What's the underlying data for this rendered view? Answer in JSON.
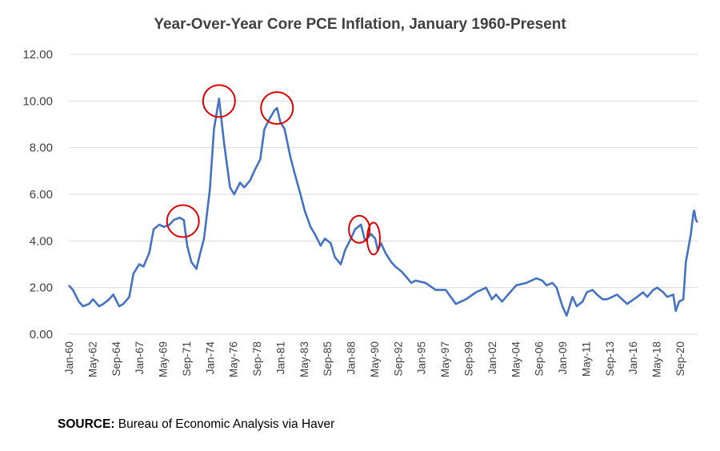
{
  "chart_data": {
    "type": "line",
    "title": "Year-Over-Year Core PCE Inflation, January 1960-Present",
    "xlabel": "",
    "ylabel": "",
    "ylim": [
      0,
      12
    ],
    "yticks": [
      "0.00",
      "2.00",
      "4.00",
      "6.00",
      "8.00",
      "10.00",
      "12.00"
    ],
    "grid": true,
    "legend": "none",
    "x_tick_labels": [
      "Jan-60",
      "May-62",
      "Sep-64",
      "Jan-67",
      "May-69",
      "Sep-71",
      "Jan-74",
      "May-76",
      "Sep-78",
      "Jan-81",
      "May-83",
      "Sep-85",
      "Jan-88",
      "May-90",
      "Sep-92",
      "Jan-95",
      "May-97",
      "Sep-99",
      "Jan-02",
      "May-04",
      "Sep-06",
      "Jan-09",
      "May-11",
      "Sep-13",
      "Jan-16",
      "May-18",
      "Sep-20"
    ],
    "series": [
      {
        "color": "#4472c4",
        "points": [
          [
            "1960-01",
            2.1
          ],
          [
            "1960-06",
            1.9
          ],
          [
            "1961-01",
            1.4
          ],
          [
            "1961-06",
            1.2
          ],
          [
            "1962-01",
            1.3
          ],
          [
            "1962-06",
            1.5
          ],
          [
            "1963-01",
            1.2
          ],
          [
            "1963-06",
            1.3
          ],
          [
            "1964-01",
            1.5
          ],
          [
            "1964-06",
            1.7
          ],
          [
            "1965-01",
            1.2
          ],
          [
            "1965-06",
            1.3
          ],
          [
            "1966-01",
            1.6
          ],
          [
            "1966-06",
            2.6
          ],
          [
            "1967-01",
            3.0
          ],
          [
            "1967-06",
            2.9
          ],
          [
            "1968-01",
            3.5
          ],
          [
            "1968-06",
            4.5
          ],
          [
            "1969-01",
            4.7
          ],
          [
            "1969-06",
            4.6
          ],
          [
            "1970-01",
            4.7
          ],
          [
            "1970-06",
            4.9
          ],
          [
            "1971-01",
            5.0
          ],
          [
            "1971-06",
            4.9
          ],
          [
            "1971-10",
            3.8
          ],
          [
            "1972-03",
            3.1
          ],
          [
            "1972-09",
            2.8
          ],
          [
            "1973-01",
            3.4
          ],
          [
            "1973-06",
            4.1
          ],
          [
            "1974-01",
            6.2
          ],
          [
            "1974-06",
            8.8
          ],
          [
            "1974-12",
            10.1
          ],
          [
            "1975-06",
            8.2
          ],
          [
            "1976-01",
            6.3
          ],
          [
            "1976-06",
            6.0
          ],
          [
            "1977-01",
            6.5
          ],
          [
            "1977-06",
            6.3
          ],
          [
            "1978-01",
            6.6
          ],
          [
            "1978-06",
            7.0
          ],
          [
            "1979-01",
            7.5
          ],
          [
            "1979-06",
            8.8
          ],
          [
            "1980-01",
            9.3
          ],
          [
            "1980-06",
            9.6
          ],
          [
            "1980-09",
            9.7
          ],
          [
            "1981-01",
            9.1
          ],
          [
            "1981-06",
            8.8
          ],
          [
            "1982-01",
            7.6
          ],
          [
            "1982-06",
            6.9
          ],
          [
            "1983-01",
            6.0
          ],
          [
            "1983-06",
            5.3
          ],
          [
            "1984-01",
            4.6
          ],
          [
            "1984-06",
            4.3
          ],
          [
            "1985-01",
            3.8
          ],
          [
            "1985-06",
            4.1
          ],
          [
            "1986-01",
            3.9
          ],
          [
            "1986-06",
            3.3
          ],
          [
            "1987-01",
            3.0
          ],
          [
            "1987-06",
            3.6
          ],
          [
            "1988-01",
            4.1
          ],
          [
            "1988-06",
            4.5
          ],
          [
            "1989-01",
            4.7
          ],
          [
            "1989-06",
            4.0
          ],
          [
            "1990-01",
            4.3
          ],
          [
            "1990-06",
            4.1
          ],
          [
            "1990-09",
            3.6
          ],
          [
            "1991-01",
            3.9
          ],
          [
            "1991-06",
            3.5
          ],
          [
            "1992-01",
            3.1
          ],
          [
            "1992-06",
            2.9
          ],
          [
            "1993-01",
            2.7
          ],
          [
            "1993-06",
            2.5
          ],
          [
            "1994-01",
            2.2
          ],
          [
            "1994-06",
            2.3
          ],
          [
            "1995-06",
            2.2
          ],
          [
            "1996-06",
            1.9
          ],
          [
            "1997-06",
            1.9
          ],
          [
            "1998-06",
            1.3
          ],
          [
            "1999-06",
            1.5
          ],
          [
            "2000-06",
            1.8
          ],
          [
            "2001-06",
            2.0
          ],
          [
            "2002-01",
            1.5
          ],
          [
            "2002-06",
            1.7
          ],
          [
            "2003-01",
            1.4
          ],
          [
            "2003-06",
            1.6
          ],
          [
            "2004-06",
            2.1
          ],
          [
            "2005-06",
            2.2
          ],
          [
            "2006-06",
            2.4
          ],
          [
            "2007-01",
            2.3
          ],
          [
            "2007-06",
            2.1
          ],
          [
            "2008-01",
            2.2
          ],
          [
            "2008-06",
            2.0
          ],
          [
            "2009-01",
            1.2
          ],
          [
            "2009-06",
            0.8
          ],
          [
            "2010-01",
            1.6
          ],
          [
            "2010-06",
            1.2
          ],
          [
            "2011-01",
            1.4
          ],
          [
            "2011-06",
            1.8
          ],
          [
            "2012-01",
            1.9
          ],
          [
            "2012-06",
            1.7
          ],
          [
            "2013-01",
            1.5
          ],
          [
            "2013-06",
            1.5
          ],
          [
            "2014-06",
            1.7
          ],
          [
            "2015-06",
            1.3
          ],
          [
            "2016-06",
            1.6
          ],
          [
            "2017-01",
            1.8
          ],
          [
            "2017-06",
            1.6
          ],
          [
            "2018-01",
            1.9
          ],
          [
            "2018-06",
            2.0
          ],
          [
            "2019-01",
            1.8
          ],
          [
            "2019-06",
            1.6
          ],
          [
            "2020-01",
            1.7
          ],
          [
            "2020-04",
            1.0
          ],
          [
            "2020-08",
            1.4
          ],
          [
            "2021-01",
            1.5
          ],
          [
            "2021-04",
            3.1
          ],
          [
            "2021-07",
            3.7
          ],
          [
            "2021-10",
            4.3
          ],
          [
            "2022-01",
            5.2
          ],
          [
            "2022-02",
            5.3
          ],
          [
            "2022-04",
            4.9
          ],
          [
            "2022-06",
            4.8
          ]
        ]
      }
    ],
    "annotations": [
      {
        "type": "circle",
        "label": "",
        "x": "1971-05",
        "y": 4.85
      },
      {
        "type": "circle",
        "label": "",
        "x": "1974-12",
        "y": 10.0
      },
      {
        "type": "circle",
        "label": "",
        "x": "1980-09",
        "y": 9.7
      },
      {
        "type": "circle",
        "label": "",
        "x": "1988-11",
        "y": 4.5
      },
      {
        "type": "circle",
        "label": "",
        "x": "1990-04",
        "y": 4.1
      }
    ]
  },
  "source": {
    "label": "SOURCE:",
    "text": " Bureau of Economic Analysis via Haver"
  }
}
